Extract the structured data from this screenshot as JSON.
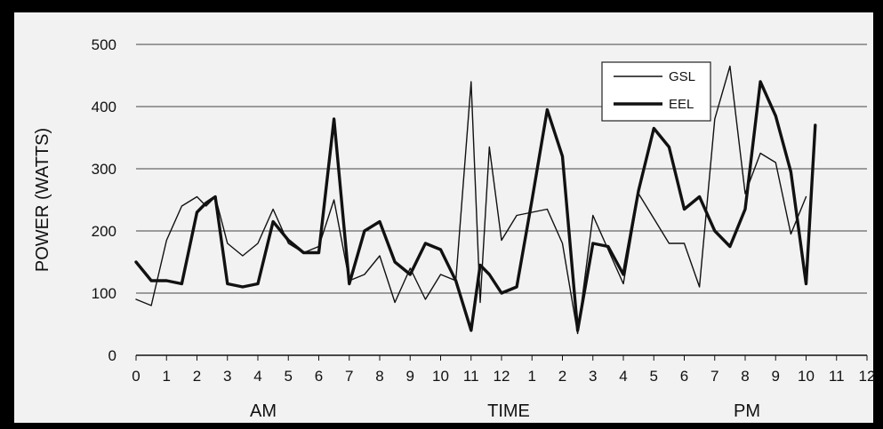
{
  "chart_data": {
    "type": "line",
    "ylabel": "POWER (WATTS)",
    "xlabel": "TIME",
    "period_labels": [
      "AM",
      "PM"
    ],
    "ylim": [
      0,
      500
    ],
    "yticks": [
      0,
      100,
      200,
      300,
      400,
      500
    ],
    "xtick_labels": [
      "0",
      "1",
      "2",
      "3",
      "4",
      "5",
      "6",
      "7",
      "8",
      "9",
      "10",
      "11",
      "12",
      "1",
      "2",
      "3",
      "4",
      "5",
      "6",
      "7",
      "8",
      "9",
      "10",
      "11",
      "12"
    ],
    "grid": "horizontal",
    "legend_position": "top-right",
    "series": [
      {
        "name": "GSL",
        "stroke": "thin",
        "x": [
          0,
          0.5,
          1,
          1.5,
          2,
          2.3,
          2.6,
          3,
          3.5,
          4,
          4.5,
          5,
          5.5,
          6,
          6.5,
          7,
          7.5,
          8,
          8.5,
          9,
          9.5,
          10,
          10.5,
          11,
          11.3,
          11.6,
          12,
          12.5,
          13,
          13.5,
          14,
          14.5,
          15,
          15.5,
          16,
          16.5,
          17,
          17.5,
          18,
          18.5,
          19,
          19.5,
          20,
          20.5,
          21,
          21.5,
          22,
          22.3,
          22.7,
          23.1,
          23.5
        ],
        "y": [
          90,
          80,
          185,
          240,
          255,
          240,
          255,
          180,
          160,
          180,
          235,
          180,
          165,
          175,
          250,
          120,
          130,
          160,
          85,
          140,
          90,
          130,
          120,
          440,
          85,
          335,
          185,
          225,
          230,
          235,
          180,
          35,
          225,
          170,
          115,
          260,
          220,
          180,
          180,
          110,
          380,
          465,
          260,
          325,
          310,
          195,
          255,
          null,
          null,
          null,
          null
        ]
      },
      {
        "name": "EEL",
        "stroke": "thick",
        "x": [
          0,
          0.5,
          1,
          1.5,
          2,
          2.3,
          2.6,
          3,
          3.5,
          4,
          4.5,
          5,
          5.5,
          6,
          6.5,
          7,
          7.5,
          8,
          8.5,
          9,
          9.5,
          10,
          10.5,
          11,
          11.3,
          11.6,
          12,
          12.5,
          13,
          13.5,
          14,
          14.5,
          15,
          15.5,
          16,
          16.5,
          17,
          17.5,
          18,
          18.5,
          19,
          19.5,
          20,
          20.5,
          21,
          21.5,
          22,
          22.3,
          22.7,
          23.1,
          23.5
        ],
        "y": [
          150,
          120,
          120,
          115,
          230,
          245,
          255,
          115,
          110,
          115,
          215,
          185,
          165,
          165,
          380,
          115,
          200,
          215,
          150,
          130,
          180,
          170,
          120,
          40,
          145,
          130,
          100,
          110,
          250,
          395,
          320,
          40,
          180,
          175,
          130,
          265,
          365,
          335,
          235,
          255,
          200,
          175,
          235,
          440,
          385,
          295,
          115,
          370,
          null,
          null,
          null
        ]
      }
    ]
  }
}
